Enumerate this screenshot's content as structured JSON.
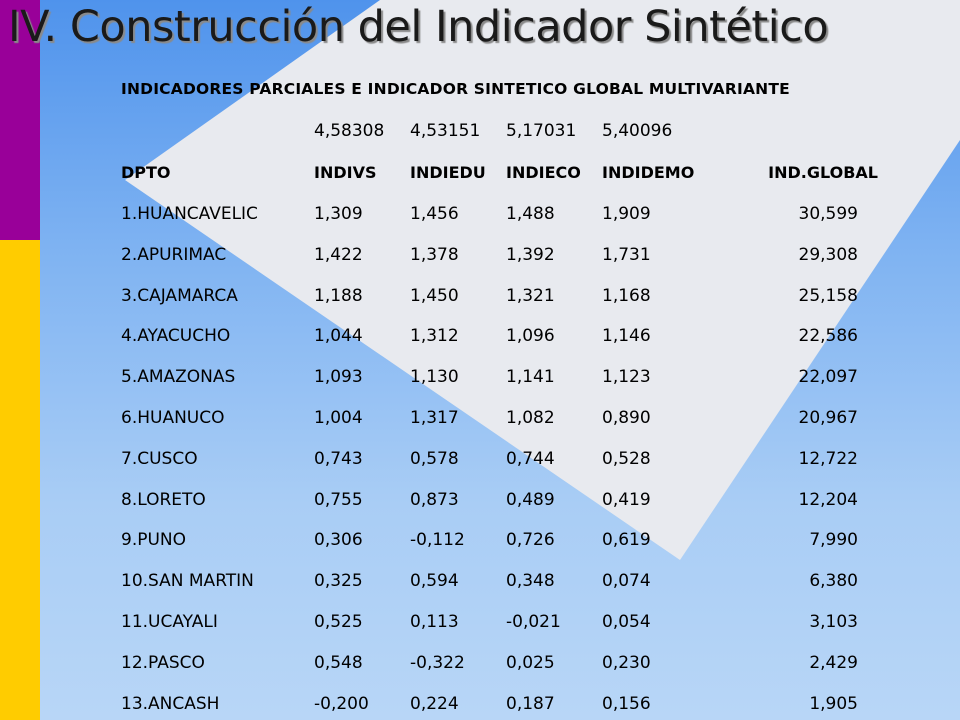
{
  "title": "IV. Construcción del Indicador Sintético",
  "subtitle": "INDICADORES PARCIALES E INDICADOR SINTETICO GLOBAL MULTIVARIANTE",
  "weights": [
    "4,58308",
    "4,53151",
    "5,17031",
    "5,40096"
  ],
  "headers": [
    "DPTO",
    "INDIVS",
    "INDIEDU",
    "INDIECO",
    "INDIDEMO",
    "IND.GLOBAL"
  ],
  "rows": [
    [
      "1.HUANCAVELIC",
      "1,309",
      "1,456",
      "1,488",
      "1,909",
      "30,599"
    ],
    [
      "2.APURIMAC",
      "1,422",
      "1,378",
      "1,392",
      "1,731",
      "29,308"
    ],
    [
      "3.CAJAMARCA",
      "1,188",
      "1,450",
      "1,321",
      "1,168",
      "25,158"
    ],
    [
      "4.AYACUCHO",
      "1,044",
      "1,312",
      "1,096",
      "1,146",
      "22,586"
    ],
    [
      "5.AMAZONAS",
      "1,093",
      "1,130",
      "1,141",
      "1,123",
      "22,097"
    ],
    [
      "6.HUANUCO",
      "1,004",
      "1,317",
      "1,082",
      "0,890",
      "20,967"
    ],
    [
      "7.CUSCO",
      "0,743",
      "0,578",
      "0,744",
      "0,528",
      "12,722"
    ],
    [
      "8.LORETO",
      "0,755",
      "0,873",
      "0,489",
      "0,419",
      "12,204"
    ],
    [
      "9.PUNO",
      "0,306",
      "-0,112",
      "0,726",
      "0,619",
      "7,990"
    ],
    [
      "10.SAN MARTIN",
      "0,325",
      "0,594",
      "0,348",
      "0,074",
      "6,380"
    ],
    [
      "11.UCAYALI",
      "0,525",
      "0,113",
      "-0,021",
      "0,054",
      "3,103"
    ],
    [
      "12.PASCO",
      "0,548",
      "-0,322",
      "0,025",
      "0,230",
      "2,429"
    ],
    [
      "13.ANCASH",
      "-0,200",
      "0,224",
      "0,187",
      "0,156",
      "1,905"
    ]
  ],
  "colors": {
    "accent_purple": "#990099",
    "accent_yellow": "#ffcc00",
    "background_blue": "#a9cdf5",
    "diamond": "#e8eaef"
  }
}
